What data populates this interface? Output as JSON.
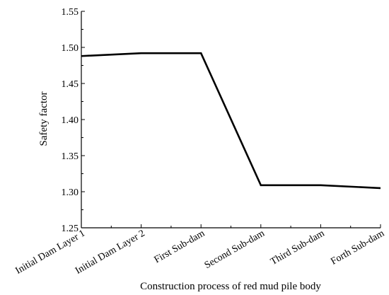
{
  "chart_data": {
    "type": "line",
    "title": "",
    "xlabel": "Construction process of red mud pile body",
    "ylabel": "Safety factor",
    "categories": [
      "Initial Dam Layer 1",
      "Initial Dam Layer 2",
      "First Sub-dam",
      "Second Sub-dam",
      "Third Sub-dam",
      "Forth Sub-dam"
    ],
    "series": [
      {
        "values": [
          1.488,
          1.492,
          1.492,
          1.309,
          1.309,
          1.305
        ]
      }
    ],
    "ylim": [
      1.25,
      1.55
    ],
    "yticks": [
      "1.25",
      "1.30",
      "1.35",
      "1.40",
      "1.45",
      "1.50",
      "1.55"
    ],
    "grid": false,
    "line_color": "#000000"
  }
}
